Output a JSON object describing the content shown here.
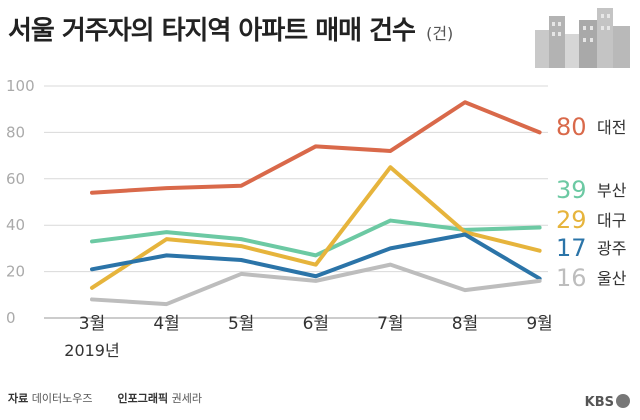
{
  "header": {
    "title": "서울 거주자의 타지역 아파트 매매 건수",
    "unit": "(건)"
  },
  "footer": {
    "source_label": "자료",
    "source_value": "데이터노우즈",
    "graphic_label": "인포그래픽",
    "graphic_value": "권세라",
    "brand": "KBS"
  },
  "chart_data": {
    "type": "line",
    "categories": [
      "3월",
      "4월",
      "5월",
      "6월",
      "7월",
      "8월",
      "9월"
    ],
    "year_label": "2019년",
    "ylim": [
      0,
      100
    ],
    "yticks": [
      0,
      20,
      40,
      60,
      80,
      100
    ],
    "grid": true,
    "series": [
      {
        "name": "대전",
        "color": "#d9694a",
        "values": [
          54,
          56,
          57,
          74,
          72,
          93,
          80
        ],
        "end_label": "80"
      },
      {
        "name": "부산",
        "color": "#6cc9a3",
        "values": [
          33,
          37,
          34,
          27,
          42,
          38,
          39
        ],
        "end_label": "39"
      },
      {
        "name": "대구",
        "color": "#e6b43c",
        "values": [
          13,
          34,
          31,
          23,
          65,
          37,
          29
        ],
        "end_label": "29"
      },
      {
        "name": "광주",
        "color": "#2b74a8",
        "values": [
          21,
          27,
          25,
          18,
          30,
          36,
          17
        ],
        "end_label": "17"
      },
      {
        "name": "울산",
        "color": "#bdbdbd",
        "values": [
          8,
          6,
          19,
          16,
          23,
          12,
          16
        ],
        "end_label": "16"
      }
    ]
  }
}
